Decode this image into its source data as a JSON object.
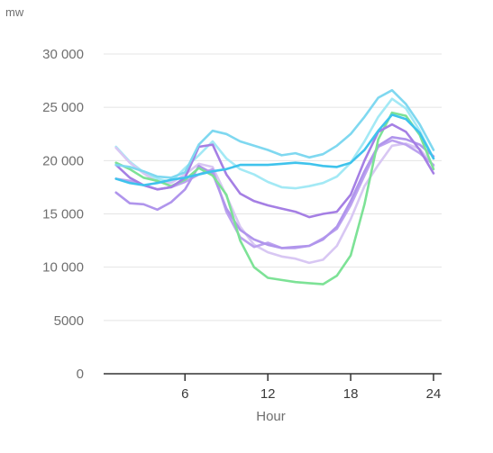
{
  "chart_data": {
    "type": "line",
    "unit_label": "mw",
    "xlabel": "Hour",
    "ylabel": "",
    "x": [
      1,
      2,
      3,
      4,
      5,
      6,
      7,
      8,
      9,
      10,
      11,
      12,
      13,
      14,
      15,
      16,
      17,
      18,
      19,
      20,
      21,
      22,
      23,
      24
    ],
    "xlim": [
      0.5,
      24
    ],
    "x_ticks": [
      6,
      12,
      18,
      24
    ],
    "x_tick_labels": [
      "6",
      "12",
      "18",
      "24"
    ],
    "ylim": [
      0,
      30000
    ],
    "y_ticks": [
      0,
      5000,
      10000,
      15000,
      20000,
      25000,
      30000
    ],
    "y_tick_labels": [
      "0",
      "5000",
      "10 000",
      "15 000",
      "20 000",
      "25 000",
      "30 000"
    ],
    "grid": true,
    "legend": "none",
    "series": [
      {
        "color": "#a3e9f5",
        "values": [
          21300,
          19900,
          18900,
          18300,
          18000,
          19300,
          20500,
          21800,
          20200,
          19200,
          18700,
          18000,
          17500,
          17400,
          17600,
          17900,
          18500,
          19800,
          21800,
          24100,
          25800,
          24900,
          22800,
          20200
        ]
      },
      {
        "color": "#d8c7f3",
        "values": [
          21200,
          19800,
          18800,
          18000,
          17900,
          18700,
          19700,
          19400,
          16700,
          13800,
          12100,
          11400,
          11000,
          10800,
          10400,
          10700,
          12000,
          14500,
          17600,
          19600,
          21400,
          21600,
          21100,
          19500
        ]
      },
      {
        "color": "#bca2ef",
        "values": [
          18300,
          18100,
          17700,
          17300,
          17500,
          18000,
          18700,
          19200,
          15200,
          12800,
          11900,
          12300,
          11800,
          11800,
          12000,
          12700,
          13600,
          15800,
          18600,
          21300,
          21900,
          21500,
          20700,
          19600
        ]
      },
      {
        "color": "#b095ec",
        "values": [
          17000,
          16000,
          15900,
          15400,
          16100,
          17300,
          19500,
          18800,
          15500,
          13500,
          12600,
          12100,
          11800,
          11900,
          12000,
          12600,
          13800,
          16200,
          19000,
          21400,
          22200,
          22000,
          21500,
          20400
        ]
      },
      {
        "color": "#7de296",
        "values": [
          19800,
          19200,
          18400,
          18100,
          17600,
          18200,
          19300,
          18600,
          16800,
          12500,
          10000,
          9000,
          8800,
          8600,
          8500,
          8400,
          9200,
          11100,
          15900,
          22000,
          24500,
          24200,
          22400,
          19200
        ]
      },
      {
        "color": "#a57fe4",
        "values": [
          19600,
          18400,
          17700,
          17300,
          17500,
          18400,
          21300,
          21500,
          18700,
          16900,
          16200,
          15800,
          15500,
          15200,
          14700,
          15000,
          15200,
          16800,
          20000,
          22700,
          23400,
          22700,
          21000,
          18800
        ]
      },
      {
        "color": "#7fd8f0",
        "values": [
          19600,
          19400,
          19000,
          18500,
          18400,
          18900,
          21500,
          22800,
          22500,
          21800,
          21400,
          21000,
          20500,
          20700,
          20300,
          20600,
          21400,
          22500,
          24100,
          25900,
          26600,
          25300,
          23400,
          21000
        ]
      },
      {
        "color": "#3fc3ec",
        "values": [
          18300,
          17900,
          17700,
          17900,
          18200,
          18400,
          18700,
          19000,
          19200,
          19600,
          19600,
          19600,
          19700,
          19800,
          19700,
          19500,
          19400,
          19800,
          21000,
          22800,
          24300,
          23900,
          22600,
          20200
        ]
      }
    ]
  }
}
